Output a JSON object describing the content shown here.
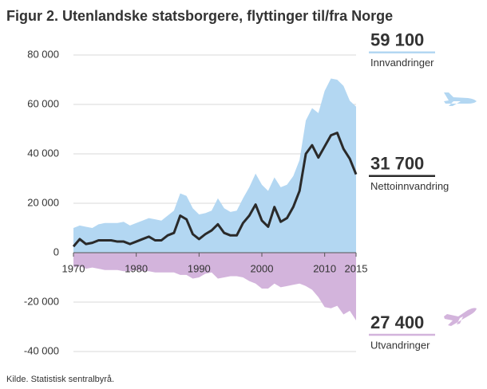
{
  "chart_data": {
    "type": "area",
    "title": "Figur 2. Utenlandske statsborgere, flyttinger til/fra Norge",
    "source": "Kilde. Statistisk sentralbyrå.",
    "x": [
      1970,
      1971,
      1972,
      1973,
      1974,
      1975,
      1976,
      1977,
      1978,
      1979,
      1980,
      1981,
      1982,
      1983,
      1984,
      1985,
      1986,
      1987,
      1988,
      1989,
      1990,
      1991,
      1992,
      1993,
      1994,
      1995,
      1996,
      1997,
      1998,
      1999,
      2000,
      2001,
      2002,
      2003,
      2004,
      2005,
      2006,
      2007,
      2008,
      2009,
      2010,
      2011,
      2012,
      2013,
      2014,
      2015
    ],
    "xlim": [
      1970,
      2015
    ],
    "xticks": [
      1970,
      1980,
      1990,
      2000,
      2010,
      2015
    ],
    "ylim": [
      -40000,
      80000
    ],
    "yticks": [
      {
        "value": -40000,
        "label": "-40 000"
      },
      {
        "value": -20000,
        "label": "-20 000"
      },
      0,
      {
        "value": 20000,
        "label": "20 000"
      },
      {
        "value": 40000,
        "label": "40 000"
      },
      {
        "value": 60000,
        "label": "60 000"
      },
      {
        "value": 80000,
        "label": "80 000"
      }
    ],
    "grid": true,
    "series": [
      {
        "name": "Innvandringer",
        "kind": "area",
        "color": "#b3d7f2",
        "values": [
          10000,
          11000,
          10500,
          10000,
          11500,
          12000,
          12000,
          12000,
          12500,
          11000,
          12000,
          13000,
          14000,
          13500,
          13000,
          15000,
          17000,
          24000,
          23000,
          18000,
          15500,
          16000,
          17000,
          22000,
          18000,
          16500,
          17000,
          22000,
          26500,
          32000,
          27500,
          25000,
          30500,
          26500,
          27500,
          31000,
          37500,
          53500,
          58500,
          56500,
          65500,
          70500,
          70000,
          67500,
          61500,
          59100
        ],
        "value_labels": [
          null,
          null,
          null,
          null,
          null,
          null,
          null,
          null,
          null,
          null,
          null,
          null,
          null,
          null,
          null,
          null,
          null,
          null,
          null,
          null,
          null,
          null,
          null,
          null,
          null,
          null,
          null,
          null,
          null,
          null,
          null,
          null,
          null,
          null,
          null,
          null,
          null,
          null,
          null,
          null,
          null,
          null,
          null,
          null,
          null,
          "59 100"
        ]
      },
      {
        "name": "Utvandringer",
        "kind": "area",
        "color": "#d3b4dc",
        "values": [
          -6000,
          -5500,
          -6500,
          -6000,
          -6500,
          -7000,
          -7000,
          -7000,
          -7500,
          -7500,
          -7000,
          -7500,
          -7500,
          -8000,
          -8000,
          -8000,
          -8000,
          -9000,
          -9000,
          -10500,
          -10000,
          -8500,
          -8000,
          -10500,
          -10000,
          -9500,
          -9500,
          -10000,
          -11500,
          -12500,
          -14500,
          -14500,
          -12500,
          -14000,
          -13500,
          -13000,
          -12500,
          -13500,
          -15000,
          -18000,
          -22000,
          -22500,
          -21500,
          -25000,
          -23500,
          -27400
        ],
        "value_labels": [
          null,
          null,
          null,
          null,
          null,
          null,
          null,
          null,
          null,
          null,
          null,
          null,
          null,
          null,
          null,
          null,
          null,
          null,
          null,
          null,
          null,
          null,
          null,
          null,
          null,
          null,
          null,
          null,
          null,
          null,
          null,
          null,
          null,
          null,
          null,
          null,
          null,
          null,
          null,
          null,
          null,
          null,
          null,
          null,
          null,
          "27 400"
        ]
      },
      {
        "name": "Nettoinnvandring",
        "kind": "line",
        "color": "#2a2a2a",
        "values": [
          2500,
          5500,
          3500,
          4000,
          5000,
          5000,
          5000,
          4500,
          4500,
          3500,
          4500,
          5500,
          6500,
          5000,
          5000,
          7000,
          8000,
          15000,
          13500,
          7500,
          5500,
          7500,
          9000,
          11500,
          8000,
          7000,
          7000,
          12000,
          15000,
          19500,
          13000,
          10500,
          18500,
          12500,
          14000,
          18500,
          25000,
          40000,
          43500,
          38500,
          43000,
          47500,
          48500,
          42000,
          38000,
          31700
        ],
        "value_labels": [
          null,
          null,
          null,
          null,
          null,
          null,
          null,
          null,
          null,
          null,
          null,
          null,
          null,
          null,
          null,
          null,
          null,
          null,
          null,
          null,
          null,
          null,
          null,
          null,
          null,
          null,
          null,
          null,
          null,
          null,
          null,
          null,
          null,
          null,
          null,
          null,
          null,
          null,
          null,
          null,
          null,
          null,
          null,
          null,
          null,
          "31 700"
        ]
      }
    ]
  }
}
